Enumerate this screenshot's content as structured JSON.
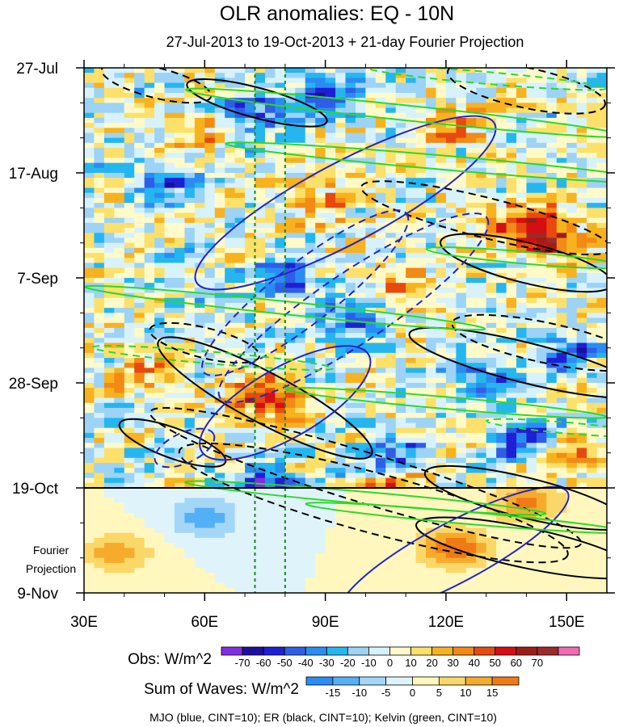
{
  "chart_data": {
    "type": "heatmap",
    "title": "OLR anomalies: EQ - 10N",
    "subtitle": "27-Jul-2013 to 19-Oct-2013 + 21-day Fourier Projection",
    "xlabel": "",
    "ylabel": "",
    "x_axis": {
      "range": [
        30,
        160
      ],
      "ticks": [
        30,
        60,
        90,
        120,
        150
      ],
      "tick_labels": [
        "30E",
        "60E",
        "90E",
        "120E",
        "150E"
      ]
    },
    "y_axis": {
      "start_date": "27-Jul-2013",
      "end_date": "9-Nov-2013",
      "ticks": [
        "27-Jul",
        "17-Aug",
        "7-Sep",
        "28-Sep",
        "19-Oct",
        "9-Nov"
      ],
      "tick_days": [
        0,
        21,
        42,
        63,
        84,
        105
      ]
    },
    "observation_end": "19-Oct",
    "projection_label": "Fourier\nProjection",
    "reference_longitudes": [
      72.5,
      80
    ],
    "colorbar_obs": {
      "label": "Obs: W/m^2",
      "levels": [
        -70,
        -60,
        -50,
        -40,
        -30,
        -20,
        -10,
        0,
        10,
        20,
        30,
        40,
        50,
        60,
        70
      ],
      "colors": [
        "#7f30e0",
        "#1c0fa0",
        "#1f1fd6",
        "#2f5ee6",
        "#2a8cf2",
        "#25b6f0",
        "#9cd3f7",
        "#d7f2fb",
        "#fffac8",
        "#fce06a",
        "#f7b21f",
        "#f28a15",
        "#e8490e",
        "#d60e14",
        "#a01c16",
        "#9c2b2b",
        "#f06ab4"
      ]
    },
    "colorbar_waves": {
      "label": "Sum of Waves: W/m^2",
      "levels": [
        -15,
        -10,
        -5,
        0,
        5,
        10,
        15
      ],
      "colors": [
        "#2c8cf5",
        "#53b0f7",
        "#a4d6f8",
        "#dff3fb",
        "#fff7bd",
        "#fbd768",
        "#f6ab2c",
        "#f07a16"
      ]
    },
    "anomaly_features": [
      {
        "kind": "positive",
        "lon": 75,
        "day": 66,
        "value": 55
      },
      {
        "kind": "positive",
        "lon": 145,
        "day": 34,
        "value": 50
      },
      {
        "kind": "positive",
        "lon": 140,
        "day": 31,
        "value": 40
      },
      {
        "kind": "positive",
        "lon": 90,
        "day": 27,
        "value": 30
      },
      {
        "kind": "positive",
        "lon": 120,
        "day": 11,
        "value": 30
      },
      {
        "kind": "positive",
        "lon": 60,
        "day": 12,
        "value": 25
      },
      {
        "kind": "positive",
        "lon": 110,
        "day": 44,
        "value": 25
      },
      {
        "kind": "positive",
        "lon": 45,
        "day": 62,
        "value": 25
      },
      {
        "kind": "positive",
        "lon": 150,
        "day": 78,
        "value": 40
      },
      {
        "kind": "positive",
        "lon": 108,
        "day": 84,
        "value": 35
      },
      {
        "kind": "negative",
        "lon": 90,
        "day": 6,
        "value": -50
      },
      {
        "kind": "negative",
        "lon": 72,
        "day": 9,
        "value": -45
      },
      {
        "kind": "negative",
        "lon": 80,
        "day": 42,
        "value": -40
      },
      {
        "kind": "negative",
        "lon": 95,
        "day": 50,
        "value": -40
      },
      {
        "kind": "negative",
        "lon": 130,
        "day": 62,
        "value": -40
      },
      {
        "kind": "negative",
        "lon": 140,
        "day": 75,
        "value": -50
      },
      {
        "kind": "negative",
        "lon": 75,
        "day": 84,
        "value": -60
      },
      {
        "kind": "negative",
        "lon": 150,
        "day": 57,
        "value": -40
      },
      {
        "kind": "negative",
        "lon": 50,
        "day": 23,
        "value": -35
      },
      {
        "kind": "negative",
        "lon": 108,
        "day": 78,
        "value": -40
      }
    ],
    "waves_projection": [
      {
        "lon": 122,
        "day": 96,
        "value": 12
      },
      {
        "lon": 140,
        "day": 87,
        "value": 10
      },
      {
        "lon": 38,
        "day": 97,
        "value": 8
      },
      {
        "lon": 60,
        "day": 90,
        "value": -8
      }
    ],
    "contours": {
      "legend": "MJO (blue, CINT=10); ER (black, CINT=10); Kelvin (green, CINT=10)",
      "mjo": [
        {
          "lon": 85,
          "day": 45,
          "a": 32,
          "b": 6,
          "angle": -38,
          "sign": "negative"
        },
        {
          "lon": 97,
          "day": 48,
          "a": 40,
          "b": 7,
          "angle": -34,
          "sign": "negative"
        },
        {
          "lon": 95,
          "day": 27,
          "a": 42,
          "b": 8,
          "angle": -28,
          "sign": "positive"
        },
        {
          "lon": 80,
          "day": 67,
          "a": 24,
          "b": 7,
          "angle": -30,
          "sign": "positive"
        },
        {
          "lon": 122,
          "day": 97,
          "a": 32,
          "b": 6,
          "angle": -28,
          "sign": "positive"
        },
        {
          "lon": 55,
          "day": 76,
          "a": 8,
          "b": 3,
          "angle": -25,
          "sign": "negative"
        }
      ],
      "er": [
        {
          "lon": 48,
          "day": 3,
          "a": 14,
          "b": 3,
          "angle": 14,
          "sign": "negative"
        },
        {
          "lon": 140,
          "day": 4,
          "a": 20,
          "b": 4,
          "angle": 12,
          "sign": "negative"
        },
        {
          "lon": 73,
          "day": 7,
          "a": 18,
          "b": 3,
          "angle": 15,
          "sign": "positive"
        },
        {
          "lon": 130,
          "day": 30,
          "a": 32,
          "b": 4,
          "angle": 14,
          "sign": "negative"
        },
        {
          "lon": 140,
          "day": 39,
          "a": 22,
          "b": 4,
          "angle": 14,
          "sign": "positive"
        },
        {
          "lon": 145,
          "day": 55,
          "a": 24,
          "b": 4,
          "angle": 12,
          "sign": "negative"
        },
        {
          "lon": 140,
          "day": 59,
          "a": 30,
          "b": 4,
          "angle": 14,
          "sign": "positive"
        },
        {
          "lon": 60,
          "day": 55,
          "a": 14,
          "b": 3,
          "angle": 14,
          "sign": "negative"
        },
        {
          "lon": 75,
          "day": 66,
          "a": 30,
          "b": 5,
          "angle": 28,
          "sign": "positive"
        },
        {
          "lon": 52,
          "day": 75,
          "a": 14,
          "b": 3,
          "angle": 20,
          "sign": "positive"
        },
        {
          "lon": 100,
          "day": 82,
          "a": 56,
          "b": 5,
          "angle": 17,
          "sign": "negative"
        },
        {
          "lon": 102,
          "day": 87,
          "a": 50,
          "b": 6,
          "angle": 15,
          "sign": "negative"
        },
        {
          "lon": 140,
          "day": 86,
          "a": 26,
          "b": 4,
          "angle": 14,
          "sign": "positive"
        },
        {
          "lon": 140,
          "day": 96,
          "a": 28,
          "b": 4,
          "angle": 12,
          "sign": "positive"
        }
      ],
      "kelvin": [
        {
          "lon": 110,
          "day": 9,
          "a": 55,
          "b": 1.5,
          "angle": 6,
          "sign": "positive"
        },
        {
          "lon": 120,
          "day": 19,
          "a": 55,
          "b": 1.4,
          "angle": 5,
          "sign": "positive"
        },
        {
          "lon": 130,
          "day": 2,
          "a": 30,
          "b": 1.2,
          "angle": 5,
          "sign": "negative"
        },
        {
          "lon": 80,
          "day": 48,
          "a": 50,
          "b": 1.3,
          "angle": 6,
          "sign": "positive"
        },
        {
          "lon": 62,
          "day": 58,
          "a": 30,
          "b": 1.2,
          "angle": 5,
          "sign": "negative"
        },
        {
          "lon": 140,
          "day": 38,
          "a": 25,
          "b": 1.2,
          "angle": 5,
          "sign": "positive"
        },
        {
          "lon": 120,
          "day": 67,
          "a": 40,
          "b": 1.2,
          "angle": 5,
          "sign": "positive"
        },
        {
          "lon": 150,
          "day": 72,
          "a": 20,
          "b": 1.1,
          "angle": 5,
          "sign": "negative"
        },
        {
          "lon": 100,
          "day": 86,
          "a": 45,
          "b": 1.2,
          "angle": 5,
          "sign": "positive"
        },
        {
          "lon": 125,
          "day": 90,
          "a": 40,
          "b": 1.2,
          "angle": 5,
          "sign": "positive"
        }
      ]
    }
  }
}
